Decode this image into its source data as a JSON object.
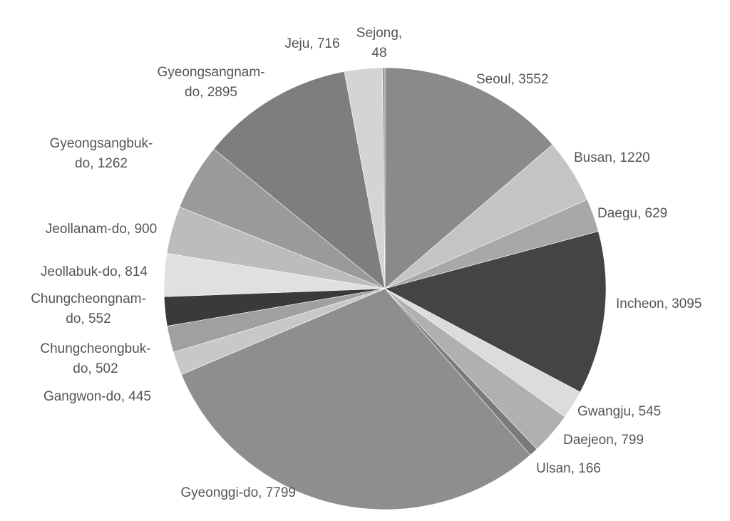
{
  "chart_data": {
    "type": "pie",
    "values": [
      3552,
      1220,
      629,
      3095,
      545,
      799,
      166,
      7799,
      445,
      502,
      552,
      814,
      900,
      1262,
      2895,
      716,
      48
    ],
    "value_labels": [
      "Seoul, 3552",
      "Busan, 1220",
      "Daegu, 629",
      "Incheon, 3095",
      "Gwangju, 545",
      "Daejeon, 799",
      "Ulsan, 166",
      "Gyeonggi-do, 7799",
      "Gangwon-do, 445",
      "Chungcheongbuk-\ndo, 502",
      "Chungcheongnam-\ndo, 552",
      "Jeollabuk-do, 814",
      "Jeollanam-do, 900",
      "Gyeongsangbuk-\ndo, 1262",
      "Gyeongsangnam-\ndo, 2895",
      "Jeju, 716",
      "Sejong,\n48"
    ],
    "colors": [
      "#8a8a8a",
      "#c4c4c4",
      "#a8a8a8",
      "#444444",
      "#dcdcdc",
      "#b0b0b0",
      "#7a7a7a",
      "#8e8e8e",
      "#c8c8c8",
      "#a0a0a0",
      "#3a3a3a",
      "#e0e0e0",
      "#bcbcbc",
      "#9a9a9a",
      "#7e7e7e",
      "#d4d4d4",
      "#999999"
    ]
  }
}
